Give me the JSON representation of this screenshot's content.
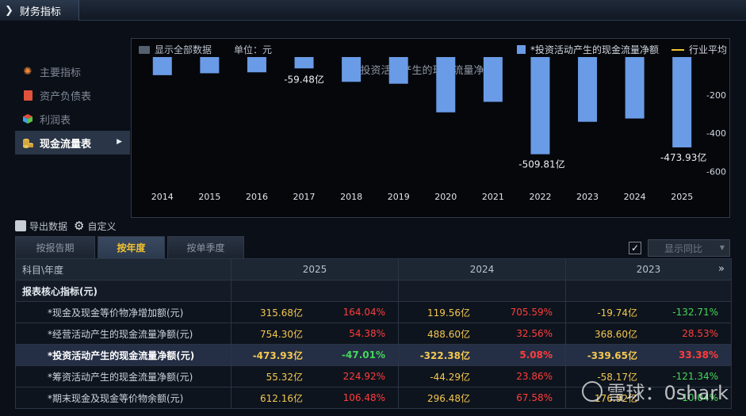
{
  "header": {
    "title": "财务指标"
  },
  "sidebar": {
    "items": [
      {
        "label": "主要指标",
        "icon": "asterisk-icon"
      },
      {
        "label": "资产负债表",
        "icon": "document-icon"
      },
      {
        "label": "利润表",
        "icon": "cube-icon"
      },
      {
        "label": "现金流量表",
        "icon": "coins-icon",
        "active": true
      }
    ]
  },
  "chart_top": {
    "show_all": "显示全部数据",
    "unit": "单位：元",
    "legend_series": "*投资活动产生的现金流量净额",
    "legend_avg": "行业平均"
  },
  "chart_data": {
    "type": "bar",
    "title": "*投资活动产生的现金流量净额",
    "categories": [
      "2014",
      "2015",
      "2016",
      "2017",
      "2018",
      "2019",
      "2020",
      "2021",
      "2022",
      "2023",
      "2024",
      "2025"
    ],
    "series": [
      {
        "name": "*投资活动产生的现金流量净额",
        "values": [
          -95,
          -85,
          -80,
          -59.48,
          -130,
          -140,
          -290,
          -235,
          -509.81,
          -339.65,
          -322.38,
          -473.93
        ]
      }
    ],
    "data_labels": {
      "3": "-59.48亿",
      "8": "-509.81亿",
      "11": "-473.93亿"
    },
    "ylim": [
      -690,
      0
    ],
    "yticks": [
      -200,
      -400,
      -600
    ],
    "legend": "top-right",
    "bar_color": "#6a9be6"
  },
  "tools": {
    "export": "导出数据",
    "custom": "自定义"
  },
  "tabs": [
    "按报告期",
    "按年度",
    "按单季度"
  ],
  "yoy": {
    "label": "显示同比"
  },
  "table": {
    "header": [
      "科目\\年度",
      "2025",
      "2024",
      "2023"
    ],
    "section": "报表核心指标(元)",
    "rows": [
      {
        "name": "*现金及现金等价物净增加额(元)",
        "cells": [
          [
            "315.68亿",
            "164.04%",
            "pos"
          ],
          [
            "119.56亿",
            "705.59%",
            "pos"
          ],
          [
            "-19.74亿",
            "-132.71%",
            "neg"
          ]
        ]
      },
      {
        "name": "*经营活动产生的现金流量净额(元)",
        "cells": [
          [
            "754.30亿",
            "54.38%",
            "pos"
          ],
          [
            "488.60亿",
            "32.56%",
            "pos"
          ],
          [
            "368.60亿",
            "28.53%",
            "pos"
          ]
        ]
      },
      {
        "name": "*投资活动产生的现金流量净额(元)",
        "hl": true,
        "cells": [
          [
            "-473.93亿",
            "-47.01%",
            "neg"
          ],
          [
            "-322.38亿",
            "5.08%",
            "pos"
          ],
          [
            "-339.65亿",
            "33.38%",
            "pos"
          ]
        ]
      },
      {
        "name": "*筹资活动产生的现金流量净额(元)",
        "cells": [
          [
            "55.32亿",
            "224.92%",
            "pos"
          ],
          [
            "-44.29亿",
            "23.86%",
            "pos"
          ],
          [
            "-58.17亿",
            "-121.34%",
            "neg"
          ]
        ]
      },
      {
        "name": "*期末现金及现金等价物余额(元)",
        "cells": [
          [
            "612.16亿",
            "106.48%",
            "pos"
          ],
          [
            "296.48亿",
            "67.58%",
            "pos"
          ],
          [
            "176.92亿",
            "-10.04%",
            "neg"
          ]
        ]
      }
    ]
  },
  "watermark": "雪球：0shark"
}
